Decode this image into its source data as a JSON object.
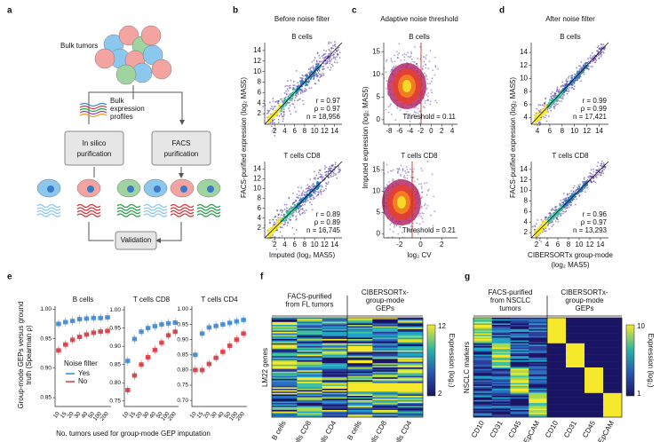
{
  "panel_a": {
    "label": "a",
    "bulk_tumors": "Bulk tumors",
    "bulk_profiles": [
      "Bulk",
      "expression",
      "profiles"
    ],
    "in_silico": [
      "In silico",
      "purification"
    ],
    "facs": [
      "FACS",
      "purification"
    ],
    "validation": "Validation"
  },
  "panel_b": {
    "label": "b",
    "title": "Before noise filter",
    "y_label": "FACS-purified expression (log₂ MAS5)",
    "x_label": [
      "Imputed (log₂ MAS5)"
    ],
    "plots": [
      {
        "title": "B cells",
        "xlim": [
          0,
          15.5
        ],
        "ylim": [
          0,
          15.5
        ],
        "xticks": [
          2,
          4,
          6,
          8,
          10,
          12,
          14
        ],
        "yticks": [
          2,
          4,
          6,
          8,
          10,
          12,
          14
        ],
        "stats": [
          "r = 0.97",
          "ρ = 0.97",
          "n = 18,956"
        ]
      },
      {
        "title": "T cells CD8",
        "xlim": [
          0,
          15.5
        ],
        "ylim": [
          0,
          15.5
        ],
        "xticks": [
          2,
          4,
          6,
          8,
          10,
          12,
          14
        ],
        "yticks": [
          2,
          4,
          6,
          8,
          10,
          12,
          14
        ],
        "stats": [
          "r = 0.89",
          "ρ = 0.89",
          "n = 16,745"
        ]
      }
    ]
  },
  "panel_c": {
    "label": "c",
    "title": "Adaptive noise threshold",
    "y_label": "Imputed expression (log₂ MAS5)",
    "x_label": [
      "log₂ CV"
    ],
    "plots": [
      {
        "title": "B cells",
        "xlim": [
          -9,
          5
        ],
        "ylim": [
          -1,
          17
        ],
        "xticks": [
          -8,
          -6,
          -4,
          -2,
          0,
          2,
          4
        ],
        "yticks": [
          0,
          5,
          10,
          15
        ],
        "stats": [
          "Threshold = 0.11"
        ]
      },
      {
        "title": "T cells CD8",
        "xlim": [
          -3.5,
          3.5
        ],
        "ylim": [
          -1,
          17
        ],
        "xticks": [
          -2,
          0,
          2
        ],
        "yticks": [
          0,
          5,
          10,
          15
        ],
        "stats": [
          "Threshold = 0.21"
        ]
      }
    ]
  },
  "panel_d": {
    "label": "d",
    "title": "After noise filter",
    "y_label": "FACS-purified expression (log₂ MAS5)",
    "x_label": [
      "CIBERSORTx group-mode",
      "(log₂ MAS5)"
    ],
    "plots": [
      {
        "title": "B cells",
        "xlim": [
          3,
          15.5
        ],
        "ylim": [
          3,
          15.5
        ],
        "xticks": [
          4,
          6,
          8,
          10,
          12,
          14
        ],
        "yticks": [
          4,
          6,
          8,
          10,
          12,
          14
        ],
        "stats": [
          "r = 0.99",
          "ρ = 0.99",
          "n = 17,421"
        ]
      },
      {
        "title": "T cells CD8",
        "xlim": [
          1,
          15.5
        ],
        "ylim": [
          1,
          15.5
        ],
        "xticks": [
          2,
          4,
          6,
          8,
          10,
          12,
          14
        ],
        "yticks": [
          2,
          4,
          6,
          8,
          10,
          12,
          14
        ],
        "stats": [
          "r = 0.96",
          "ρ = 0.97",
          "n = 13,293"
        ]
      }
    ]
  },
  "panel_e": {
    "label": "e",
    "y_label": [
      "Group-mode GEPs versus ground",
      "truth (Spearman ρ)"
    ],
    "x_label": "No. tumors used for group-mode GEP imputation",
    "categories": [
      10,
      15,
      20,
      30,
      40,
      50,
      100,
      200
    ],
    "legend": {
      "title": "Noise filter",
      "items": [
        {
          "name": "Yes",
          "color": "#3b86d6"
        },
        {
          "name": "No",
          "color": "#d9363e"
        }
      ]
    },
    "plots": [
      {
        "title": "B cells",
        "ylim": [
          0.835,
          1.005
        ],
        "yticks": [
          {
            "value": 1.0,
            "label": "1.00"
          },
          0.95,
          {
            "value": 0.9,
            "label": "0.90"
          },
          0.85
        ],
        "yes": [
          0.975,
          0.978,
          0.98,
          0.983,
          0.984,
          0.985,
          0.985,
          0.986
        ],
        "no": [
          0.93,
          0.94,
          0.948,
          0.953,
          0.957,
          0.96,
          0.962,
          0.963
        ]
      },
      {
        "title": "T cells CD8",
        "ylim": [
          0.735,
          1.01
        ],
        "yticks": [
          {
            "value": 1.0,
            "label": "1.00"
          },
          0.95,
          {
            "value": 0.9,
            "label": "0.90"
          },
          0.85,
          {
            "value": 0.8,
            "label": "0.80"
          },
          0.75
        ],
        "yes": [
          0.86,
          0.92,
          0.94,
          0.95,
          0.955,
          0.96,
          0.963,
          0.965
        ],
        "no": [
          0.78,
          0.82,
          0.85,
          0.87,
          0.89,
          0.91,
          0.93,
          0.94
        ]
      },
      {
        "title": "T cells CD4",
        "ylim": [
          0.68,
          1.01
        ],
        "yticks": [
          {
            "value": 1.0,
            "label": "1.00"
          },
          0.95,
          {
            "value": 0.9,
            "label": "0.90"
          },
          0.85,
          {
            "value": 0.8,
            "label": "0.80"
          },
          0.75,
          {
            "value": 0.7,
            "label": "0.70"
          }
        ],
        "yes": [
          0.85,
          0.92,
          0.94,
          0.945,
          0.95,
          0.955,
          0.96,
          0.965
        ],
        "no": [
          0.8,
          0.8,
          0.82,
          0.84,
          0.86,
          0.88,
          0.9,
          0.92
        ]
      }
    ]
  },
  "panel_f": {
    "label": "f",
    "left_header": [
      "FACS-purified",
      "from FL tumors"
    ],
    "right_header": [
      "CIBERSORTx-",
      "group-mode",
      "GEPs"
    ],
    "row_label": "LM22 genes",
    "columns": [
      "B cells",
      "T cells CD8",
      "T cells CD4",
      "B cells",
      "T cells CD8",
      "T cells CD4"
    ],
    "scale_max": "12",
    "scale_min": "2",
    "scale_label": "Expression (log₂)"
  },
  "panel_g": {
    "label": "g",
    "left_header": [
      "FACS-purified",
      "from NSCLC",
      "tumors"
    ],
    "right_header": [
      "CIBERSORTx-",
      "group-mode",
      "GEPs"
    ],
    "row_label": "NSCLC markers",
    "columns": [
      "CD10",
      "CD31",
      "CD45",
      "EpCAM",
      "CD10",
      "CD31",
      "CD45",
      "EpCAM"
    ],
    "scale_max": "10",
    "scale_min": "1",
    "scale_label": "Expression (log₂)"
  }
}
